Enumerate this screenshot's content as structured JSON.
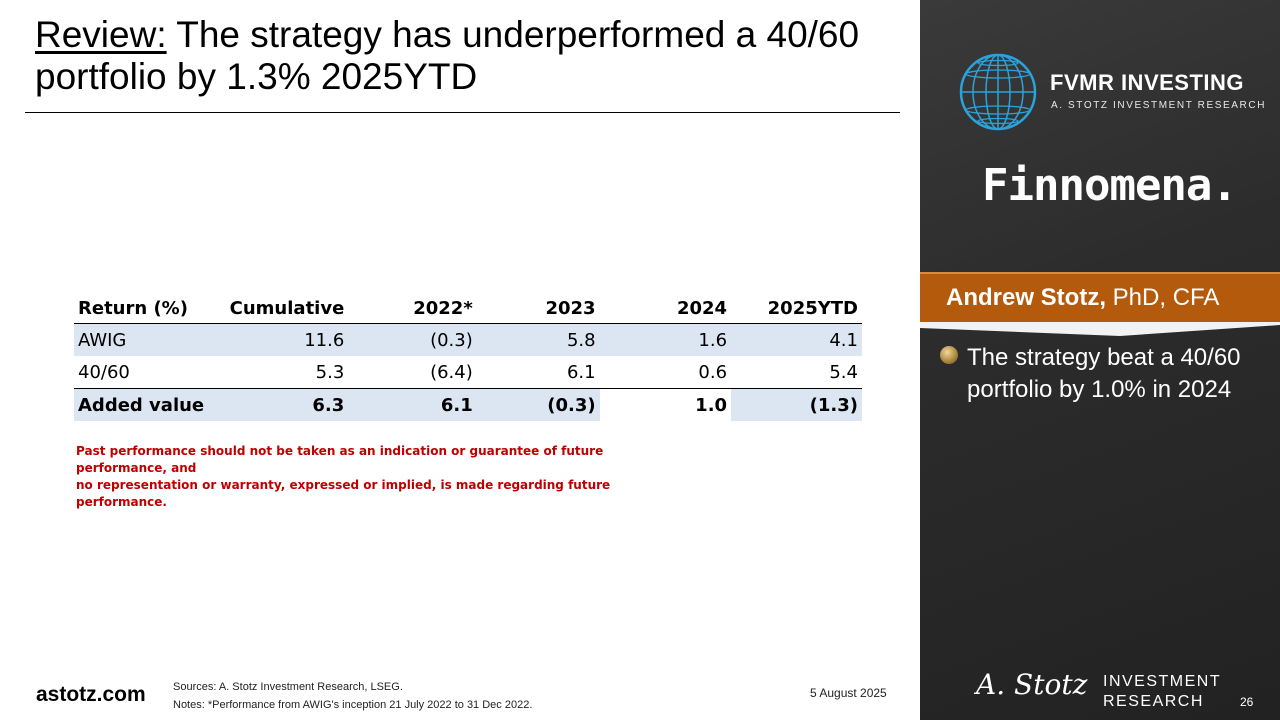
{
  "slide": {
    "title_prefix": "Review:",
    "title_rest": " The strategy has underperformed a 40/60 portfolio by 1.3% 2025YTD"
  },
  "table": {
    "headers": [
      "Return (%)",
      "Cumulative",
      "2022*",
      "2023",
      "2024",
      "2025YTD"
    ],
    "rows": [
      [
        "AWIG",
        "11.6",
        "(0.3)",
        "5.8",
        "1.6",
        "4.1"
      ],
      [
        "40/60",
        "5.3",
        "(6.4)",
        "6.1",
        "0.6",
        "5.4"
      ],
      [
        "Added value",
        "6.3",
        "6.1",
        "(0.3)",
        "1.0",
        "(1.3)"
      ]
    ]
  },
  "disclaimer": {
    "line1": "Past performance should not be taken as an indication or guarantee of future performance, and",
    "line2": "no representation or warranty, expressed or implied, is made regarding future performance."
  },
  "footer": {
    "site": "astotz.com",
    "sources": "Sources: A. Stotz Investment Research, LSEG.",
    "notes": "Notes: *Performance from AWIG's inception 21 July 2022 to 31 Dec 2022.",
    "date": "5 August 2025",
    "page": "26"
  },
  "panel": {
    "brand_name": "FVMR INVESTING",
    "brand_sub": "A. STOTZ INVESTMENT RESEARCH",
    "partner": "Finnomena.",
    "presenter_name": "Andrew Stotz,",
    "presenter_title": " PhD, CFA",
    "bullet": "The strategy beat a 40/60 portfolio by 1.0% in 2024",
    "signature": "A. Stotz",
    "ir_line1": "INVESTMENT",
    "ir_line2": "RESEARCH"
  },
  "colors": {
    "accent_orange": "#b35a0c",
    "table_shade": "#dce6f2",
    "disclaimer_red": "#c00000",
    "globe_blue": "#2aa3dc"
  }
}
